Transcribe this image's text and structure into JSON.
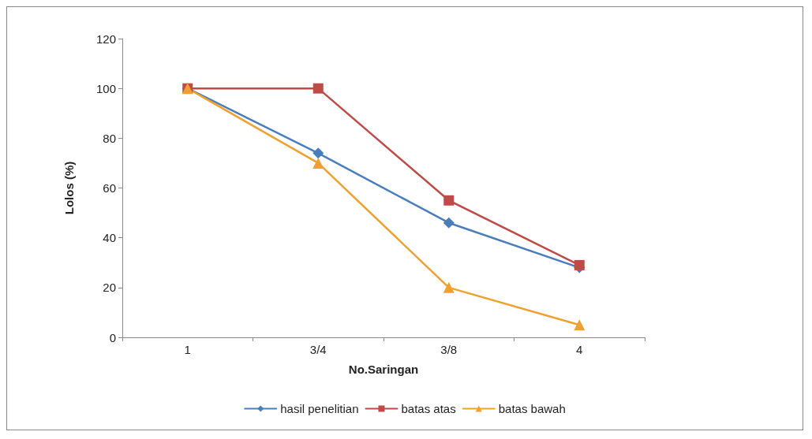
{
  "chart_data": {
    "type": "line",
    "xlabel": "No.Saringan",
    "ylabel": "Lolos (%)",
    "categories": [
      "1",
      "3/4",
      "3/8",
      "4"
    ],
    "series": [
      {
        "name": "hasil penelitian",
        "color": "#4a7ebb",
        "marker": "diamond",
        "values": [
          100,
          74,
          46,
          28
        ]
      },
      {
        "name": "batas atas",
        "color": "#be4b48",
        "marker": "square",
        "values": [
          100,
          100,
          55,
          29
        ]
      },
      {
        "name": "batas bawah",
        "color": "#f0a030",
        "marker": "triangle",
        "values": [
          100,
          70,
          20,
          5
        ]
      }
    ],
    "ylim": [
      0,
      120
    ],
    "yticks": [
      0,
      20,
      40,
      60,
      80,
      100,
      120
    ],
    "grid": false,
    "legend": "bottom",
    "line_style": "solid"
  }
}
